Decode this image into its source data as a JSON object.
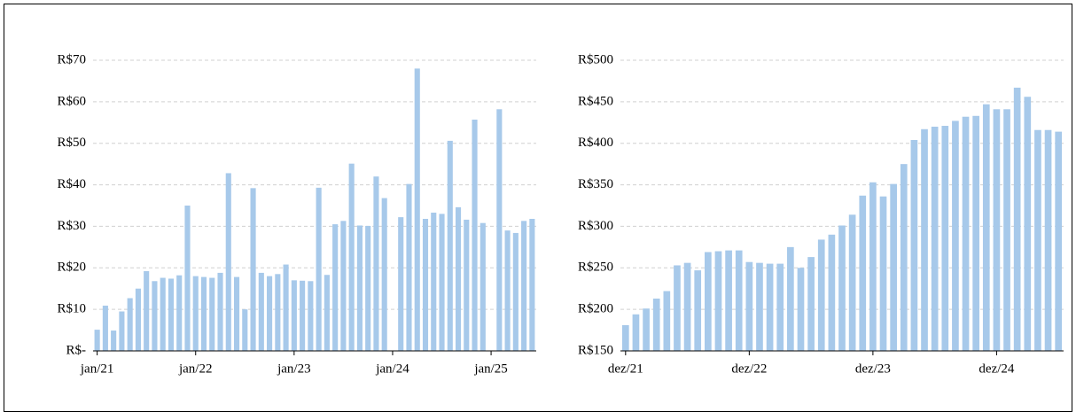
{
  "chart_data": [
    {
      "type": "bar",
      "color": "#a7c9ea",
      "grid": true,
      "categories": [
        "jan/21",
        null,
        null,
        null,
        null,
        null,
        null,
        null,
        null,
        null,
        null,
        null,
        "jan/22",
        null,
        null,
        null,
        null,
        null,
        null,
        null,
        null,
        null,
        null,
        null,
        "jan/23",
        null,
        null,
        null,
        null,
        null,
        null,
        null,
        null,
        null,
        null,
        null,
        "jan/24",
        null,
        null,
        null,
        null,
        null,
        null,
        null,
        null,
        null,
        null,
        null,
        "jan/25",
        null,
        null,
        null,
        null,
        null
      ],
      "values": [
        5.1,
        10.9,
        4.9,
        9.5,
        12.7,
        15,
        19.2,
        16.8,
        17.6,
        17.4,
        18.2,
        35,
        18,
        17.8,
        17.6,
        18.8,
        42.8,
        17.8,
        10,
        39.2,
        18.8,
        18,
        18.5,
        20.8,
        17,
        16.9,
        16.8,
        39.3,
        18.3,
        30.5,
        31.3,
        45.1,
        30.2,
        30.1,
        42,
        36.8,
        null,
        32.2,
        40.2,
        68,
        31.8,
        33.3,
        33,
        50.6,
        34.6,
        31.6,
        55.7,
        30.8,
        null,
        58.2,
        29,
        28.4,
        31.3,
        31.8
      ],
      "ylim": [
        0,
        70
      ],
      "yticks": [
        {
          "value": 0,
          "label": "R$-"
        },
        {
          "value": 10,
          "label": "R$10"
        },
        {
          "value": 20,
          "label": "R$20"
        },
        {
          "value": 30,
          "label": "R$30"
        },
        {
          "value": 40,
          "label": "R$40"
        },
        {
          "value": 50,
          "label": "R$50"
        },
        {
          "value": 60,
          "label": "R$60"
        },
        {
          "value": 70,
          "label": "R$70"
        }
      ]
    },
    {
      "type": "bar",
      "color": "#a7c9ea",
      "grid": true,
      "categories": [
        "dez/21",
        null,
        null,
        null,
        null,
        null,
        null,
        null,
        null,
        null,
        null,
        null,
        "dez/22",
        null,
        null,
        null,
        null,
        null,
        null,
        null,
        null,
        null,
        null,
        null,
        "dez/23",
        null,
        null,
        null,
        null,
        null,
        null,
        null,
        null,
        null,
        null,
        null,
        "dez/24",
        null,
        null,
        null,
        null,
        null,
        null
      ],
      "values": [
        181,
        194,
        201,
        213,
        222,
        253,
        256,
        247,
        269,
        270,
        271,
        271,
        257,
        256,
        255,
        255,
        275,
        250,
        263,
        284,
        290,
        301,
        314,
        337,
        353,
        336,
        351,
        375,
        404,
        417,
        420,
        421,
        427,
        432,
        433,
        447,
        441,
        441,
        467,
        456,
        416,
        416,
        414
      ],
      "ylim": [
        150,
        500
      ],
      "yticks": [
        {
          "value": 150,
          "label": "R$150"
        },
        {
          "value": 200,
          "label": "R$200"
        },
        {
          "value": 250,
          "label": "R$250"
        },
        {
          "value": 300,
          "label": "R$300"
        },
        {
          "value": 350,
          "label": "R$350"
        },
        {
          "value": 400,
          "label": "R$400"
        },
        {
          "value": 450,
          "label": "R$450"
        },
        {
          "value": 500,
          "label": "R$500"
        }
      ]
    }
  ]
}
